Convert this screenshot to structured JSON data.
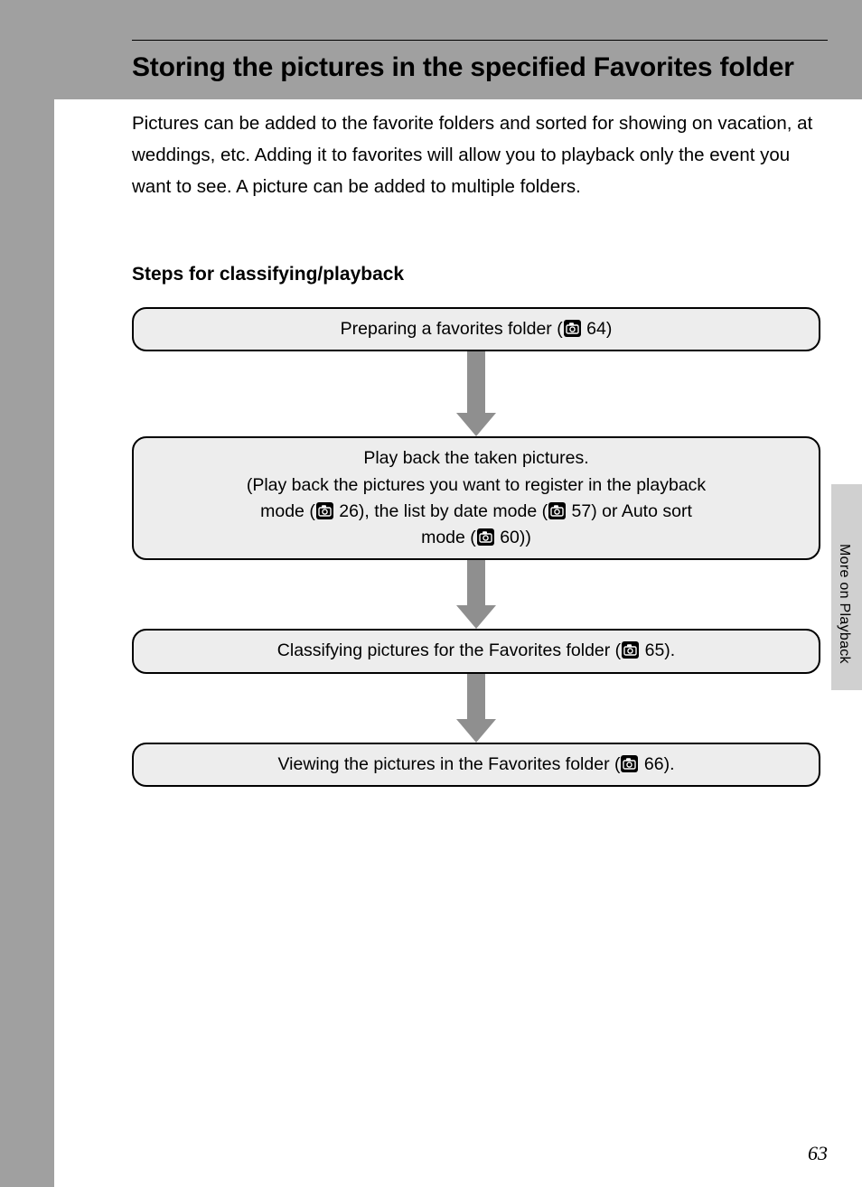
{
  "page": {
    "title": "Storing the pictures in the specified Favorites folder",
    "intro": "Pictures can be added to the favorite folders and sorted for showing on vacation, at weddings, etc. Adding it to favorites will allow you to playback only the event you want to see. A picture can be added to multiple folders.",
    "steps_heading": "Steps for classifying/playback",
    "side_tab_label": "More on Playback",
    "page_number": "63"
  },
  "flowchart": {
    "type": "flowchart",
    "box_background": "#ededed",
    "box_border_color": "#000000",
    "box_border_width": 2,
    "box_border_radius": 16,
    "arrow_color": "#8f8f8f",
    "arrow_stem_width": 20,
    "arrow_head_width": 44,
    "arrow_head_height": 26,
    "font_size": 19.5,
    "nodes": [
      {
        "id": "n1",
        "text_before": "Preparing a favorites folder (",
        "page_ref": "64",
        "text_after": ")",
        "arrow_stem_height": 68
      },
      {
        "id": "n2",
        "lines": [
          {
            "before": "Play back the taken pictures.",
            "ref": null,
            "after": ""
          },
          {
            "before": "(Play back the pictures you want to register in the playback",
            "ref": null,
            "after": ""
          }
        ],
        "compound": {
          "pre1": "mode (",
          "ref1": "26",
          "mid1": "), the list by date mode (",
          "ref2": "57",
          "mid2": ") or Auto sort",
          "line2_pre": "mode (",
          "ref3": "60",
          "line2_post": "))"
        },
        "arrow_stem_height": 50
      },
      {
        "id": "n3",
        "text_before": "Classifying pictures for the Favorites folder (",
        "page_ref": "65",
        "text_after": ").",
        "arrow_stem_height": 50
      },
      {
        "id": "n4",
        "text_before": "Viewing the pictures in the Favorites folder (",
        "page_ref": "66",
        "text_after": ").",
        "arrow_stem_height": 0
      }
    ]
  },
  "colors": {
    "page_background": "#ffffff",
    "outer_background": "#a0a0a0",
    "side_tab_background": "#d0d0d0",
    "text": "#000000"
  }
}
